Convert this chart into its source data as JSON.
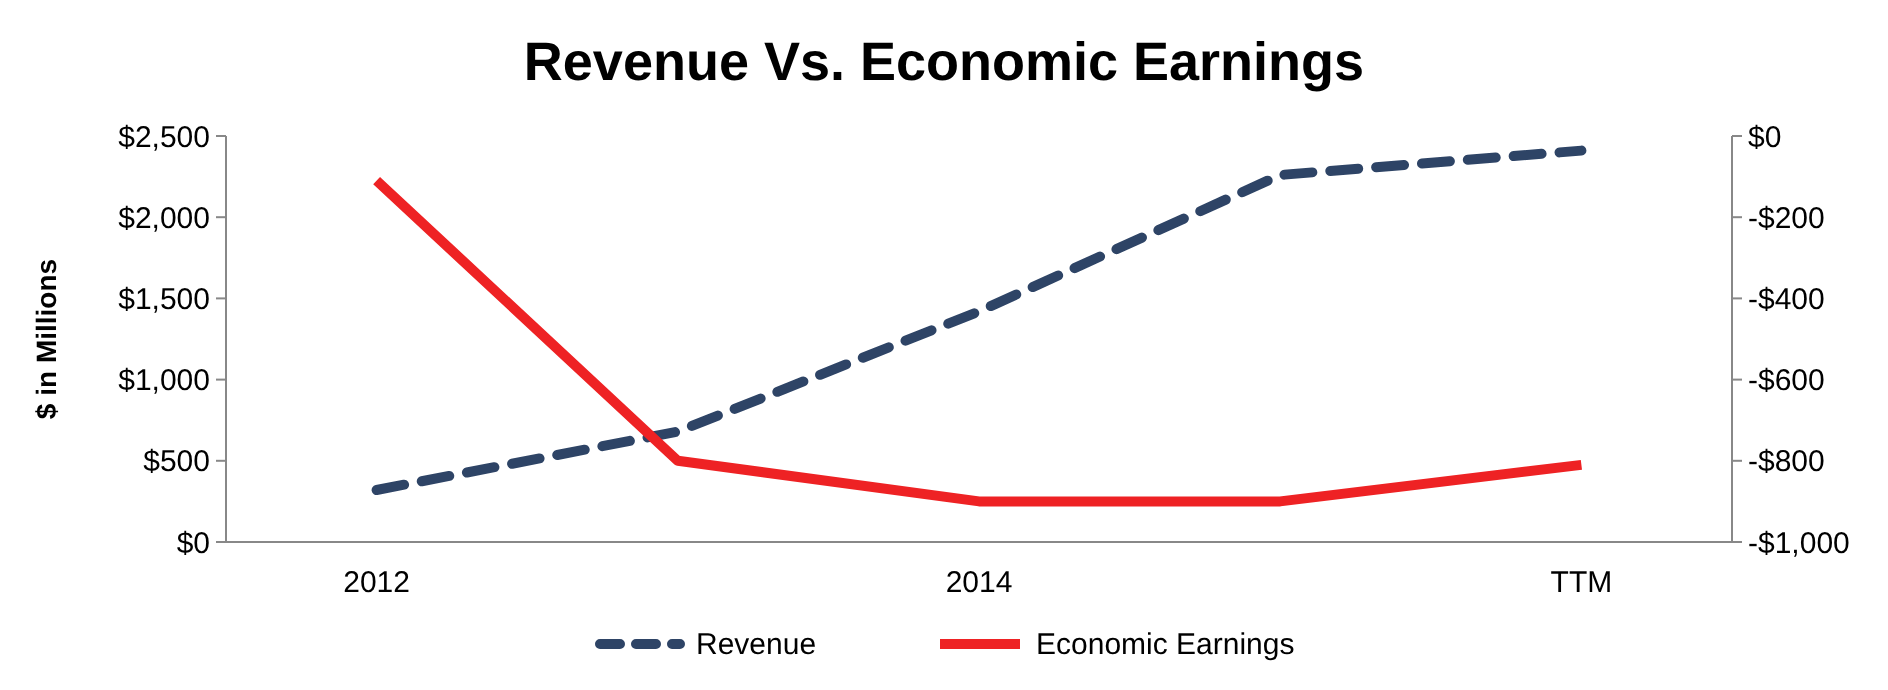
{
  "chart_data": {
    "type": "line",
    "title": "Revenue Vs. Economic Earnings",
    "ylabel": "$ in Millions",
    "categories": [
      "2012",
      null,
      "2014",
      null,
      "TTM"
    ],
    "series": [
      {
        "name": "Revenue",
        "color": "#2e4466",
        "values": [
          320,
          680,
          1420,
          2260,
          2410
        ],
        "line_style": "dashed"
      },
      {
        "name": "Economic Earnings",
        "color": "#ee2224",
        "values": [
          -110,
          -800,
          -900,
          -900,
          -810
        ],
        "axis": "y2",
        "line_style": "solid"
      }
    ],
    "ylim": [
      0,
      2500
    ],
    "yticks": [
      {
        "value": 0,
        "label": "$0"
      },
      {
        "value": 500,
        "label": "$500"
      },
      {
        "value": 1000,
        "label": "$1,000"
      },
      {
        "value": 1500,
        "label": "$1,500"
      },
      {
        "value": 2000,
        "label": "$2,000"
      },
      {
        "value": 2500,
        "label": "$2,500"
      }
    ],
    "y2lim": [
      -1000,
      0
    ],
    "y2ticks": [
      {
        "value": -1000,
        "label": "-$1,000"
      },
      {
        "value": -800,
        "label": "-$800"
      },
      {
        "value": -600,
        "label": "-$600"
      },
      {
        "value": -400,
        "label": "-$400"
      },
      {
        "value": -200,
        "label": "-$200"
      },
      {
        "value": 0,
        "label": "$0"
      }
    ],
    "legend": "bottom",
    "grid": false
  }
}
